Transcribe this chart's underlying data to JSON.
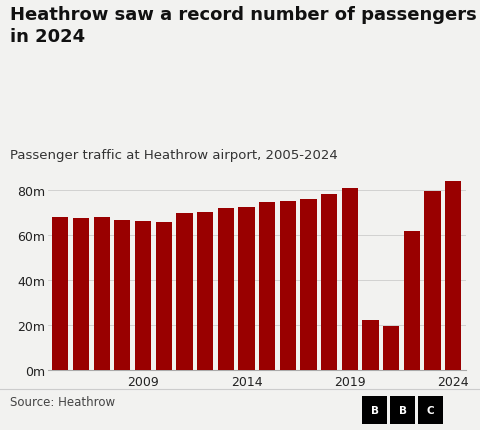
{
  "title": "Heathrow saw a record number of passengers\nin 2024",
  "subtitle": "Passenger traffic at Heathrow airport, 2005-2024",
  "source": "Source: Heathrow",
  "years": [
    2005,
    2006,
    2007,
    2008,
    2009,
    2010,
    2011,
    2012,
    2013,
    2014,
    2015,
    2016,
    2017,
    2018,
    2019,
    2020,
    2021,
    2022,
    2023,
    2024
  ],
  "values": [
    68.0,
    67.5,
    68.0,
    66.5,
    66.0,
    65.7,
    69.5,
    70.0,
    72.0,
    72.3,
    74.5,
    75.0,
    75.7,
    78.0,
    80.9,
    22.0,
    19.5,
    61.6,
    79.2,
    83.9
  ],
  "bar_color": "#990000",
  "bg_color": "#f2f2f0",
  "ytick_labels": [
    "0m",
    "20m",
    "40m",
    "60m",
    "80m"
  ],
  "ytick_values": [
    0,
    20,
    40,
    60,
    80
  ],
  "ylim": [
    0,
    90
  ],
  "xlabel_years": [
    2009,
    2014,
    2019,
    2024
  ],
  "title_fontsize": 13,
  "subtitle_fontsize": 9.5,
  "source_fontsize": 8.5,
  "tick_fontsize": 9
}
